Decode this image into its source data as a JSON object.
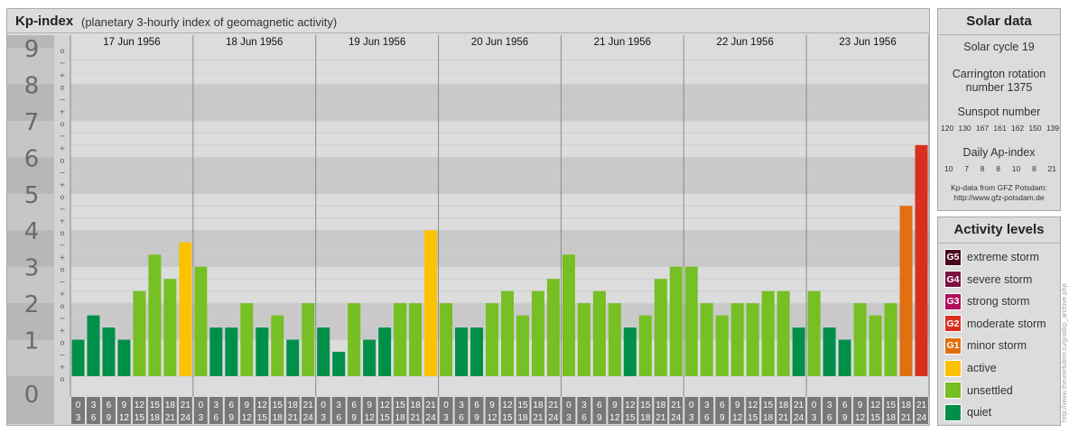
{
  "title": "Kp-index",
  "subtitle": "(planetary 3-hourly index of geomagnetic activity)",
  "chart_data": {
    "type": "bar",
    "title": "Kp-index",
    "subtitle": "(planetary 3-hourly index of geomagnetic activity)",
    "ylim": [
      0,
      9
    ],
    "y_ticks": [
      "0",
      "1",
      "2",
      "3",
      "4",
      "5",
      "6",
      "7",
      "8",
      "9"
    ],
    "minor_tick_labels": [
      "o",
      "+",
      "−",
      "o",
      "+",
      "−",
      "o",
      "+",
      "−",
      "o",
      "+",
      "−",
      "o",
      "+",
      "−",
      "o",
      "+",
      "−",
      "o",
      "+",
      "−",
      "o",
      "+",
      "−",
      "o",
      "+",
      "−",
      "o"
    ],
    "days": [
      "17 Jun 1956",
      "18 Jun 1956",
      "19 Jun 1956",
      "20 Jun 1956",
      "21 Jun 1956",
      "22 Jun 1956",
      "23 Jun 1956"
    ],
    "interval_labels": [
      [
        "0",
        "3"
      ],
      [
        "3",
        "6"
      ],
      [
        "6",
        "9"
      ],
      [
        "9",
        "12"
      ],
      [
        "12",
        "15"
      ],
      [
        "15",
        "18"
      ],
      [
        "18",
        "21"
      ],
      [
        "21",
        "24"
      ]
    ],
    "values": [
      [
        1.0,
        1.667,
        1.333,
        1.0,
        2.333,
        3.333,
        2.667,
        3.667
      ],
      [
        3.0,
        1.333,
        1.333,
        2.0,
        1.333,
        1.667,
        1.0,
        2.0
      ],
      [
        1.333,
        0.667,
        2.0,
        1.0,
        1.333,
        2.0,
        2.0,
        4.0
      ],
      [
        2.0,
        1.333,
        1.333,
        2.0,
        2.333,
        1.667,
        2.333,
        2.667
      ],
      [
        3.333,
        2.0,
        2.333,
        2.0,
        1.333,
        1.667,
        2.667,
        3.0
      ],
      [
        3.0,
        2.0,
        1.667,
        2.0,
        2.0,
        2.333,
        2.333,
        1.333
      ],
      [
        2.333,
        1.333,
        1.0,
        2.0,
        1.667,
        2.0,
        4.667,
        6.333
      ]
    ],
    "levels": [
      "quiet",
      "quiet",
      "quiet",
      "quiet",
      "unsettled",
      "unsettled",
      "unsettled",
      "active",
      "unsettled",
      "quiet",
      "quiet",
      "unsettled",
      "quiet",
      "unsettled",
      "quiet",
      "unsettled",
      "quiet",
      "quiet",
      "unsettled",
      "quiet",
      "quiet",
      "unsettled",
      "unsettled",
      "active",
      "unsettled",
      "quiet",
      "quiet",
      "unsettled",
      "unsettled",
      "unsettled",
      "unsettled",
      "unsettled",
      "unsettled",
      "unsettled",
      "unsettled",
      "unsettled",
      "quiet",
      "unsettled",
      "unsettled",
      "unsettled",
      "unsettled",
      "unsettled",
      "unsettled",
      "unsettled",
      "unsettled",
      "unsettled",
      "unsettled",
      "quiet",
      "unsettled",
      "quiet",
      "quiet",
      "unsettled",
      "unsettled",
      "unsettled",
      "G1",
      "G2"
    ],
    "colors": {
      "quiet": "#008f49",
      "unsettled": "#76bf24",
      "active": "#fcc200",
      "G1": "#e06f10",
      "G2": "#d82f1e",
      "G3": "#b0105c",
      "G4": "#7c1040",
      "G5": "#4a0520",
      "band_dark": "#c9c9c9",
      "band_light": "#dcdcdc",
      "y_bg": "#b7b7b7",
      "x_label_bg": "#787878"
    }
  },
  "solar": {
    "title": "Solar data",
    "cycle": "Solar cycle 19",
    "carrington_line1": "Carrington rotation",
    "carrington_line2": "number 1375",
    "sunspot_title": "Sunspot number",
    "sunspot_values": [
      "120",
      "130",
      "167",
      "161",
      "162",
      "150",
      "139"
    ],
    "ap_title": "Daily Ap-index",
    "ap_values": [
      "10",
      "7",
      "8",
      "8",
      "10",
      "8",
      "21"
    ],
    "source_line1": "Kp-data from GFZ Potsdam:",
    "source_line2": "http://www.gfz-potsdam.de"
  },
  "activity": {
    "title": "Activity levels",
    "items": [
      {
        "code": "G5",
        "label": "extreme storm",
        "color": "#4a0520"
      },
      {
        "code": "G4",
        "label": "severe storm",
        "color": "#7c1040"
      },
      {
        "code": "G3",
        "label": "strong storm",
        "color": "#b0105c"
      },
      {
        "code": "G2",
        "label": "moderate storm",
        "color": "#d82f1e"
      },
      {
        "code": "G1",
        "label": "minor storm",
        "color": "#e06f10"
      },
      {
        "code": "",
        "label": "active",
        "color": "#fcc200"
      },
      {
        "code": "",
        "label": "unsettled",
        "color": "#76bf24"
      },
      {
        "code": "",
        "label": "quiet",
        "color": "#008f49"
      }
    ]
  },
  "watermark": "http://www.theusefulent.ru/gral/kp_archive.php"
}
